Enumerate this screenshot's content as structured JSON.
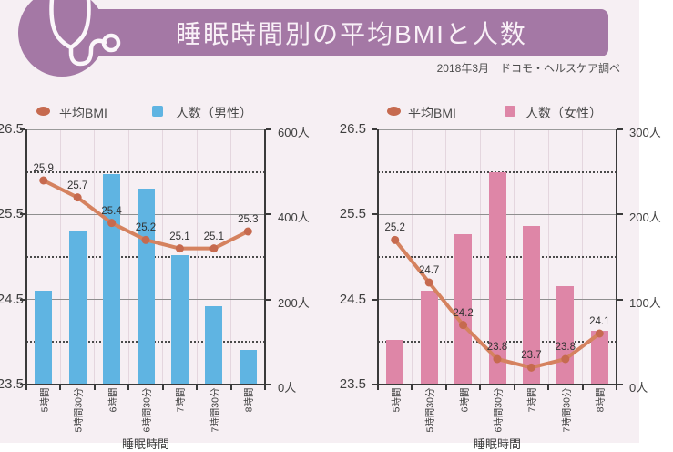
{
  "page": {
    "background": "#f6eff3"
  },
  "header": {
    "title": "睡眠時間別の平均BMIと人数",
    "source_note": "2018年3月　ドコモ・ヘルスケア調べ",
    "banner_color": "#a478a5",
    "title_color": "#f9f0f7",
    "icon": "stethoscope-icon"
  },
  "chart_data": [
    {
      "type": "bar+line",
      "gender": "男性",
      "categories": [
        "5時間",
        "5時間30分",
        "6時間",
        "6時間30分",
        "7時間",
        "7時間30分",
        "8時間"
      ],
      "xlabel": "睡眠時間",
      "bar_series": {
        "name": "人数（男性）",
        "color": "#5fb4e2",
        "axis": "right",
        "values": [
          220,
          360,
          495,
          460,
          305,
          185,
          82
        ]
      },
      "line_series": {
        "name": "平均BMI",
        "color": "#d5825f",
        "marker_color": "#c66a4f",
        "axis": "left",
        "values": [
          25.9,
          25.7,
          25.4,
          25.2,
          25.1,
          25.1,
          25.3
        ],
        "labels": [
          "25.9",
          "25.7",
          "25.4",
          "25.2",
          "25.1",
          "25.1",
          "25.3"
        ]
      },
      "left_axis": {
        "min": 23.5,
        "max": 26.5,
        "tick_labels": [
          "26.5",
          "25.5",
          "24.5",
          "23.5"
        ]
      },
      "right_axis": {
        "min": 0,
        "max": 600,
        "tick_labels": [
          "600人",
          "400人",
          "200人",
          "0人"
        ]
      },
      "grid": {
        "solid_levels": [
          25.5,
          24.5
        ],
        "dotted_levels": [
          26.0,
          25.0,
          24.0
        ]
      }
    },
    {
      "type": "bar+line",
      "gender": "女性",
      "categories": [
        "5時間",
        "5時間30分",
        "6時間",
        "6時間30分",
        "7時間",
        "7時間30分",
        "8時間"
      ],
      "xlabel": "睡眠時間",
      "bar_series": {
        "name": "人数（女性）",
        "color": "#de86a7",
        "axis": "right",
        "values": [
          52,
          110,
          177,
          250,
          186,
          116,
          63
        ]
      },
      "line_series": {
        "name": "平均BMI",
        "color": "#d5825f",
        "marker_color": "#c66a4f",
        "axis": "left",
        "values": [
          25.2,
          24.7,
          24.2,
          23.8,
          23.7,
          23.8,
          24.1
        ],
        "labels": [
          "25.2",
          "24.7",
          "24.2",
          "23.8",
          "23.7",
          "23.8",
          "24.1"
        ]
      },
      "left_axis": {
        "min": 23.5,
        "max": 26.5,
        "tick_labels": [
          "26.5",
          "25.5",
          "24.5",
          "23.5"
        ]
      },
      "right_axis": {
        "min": 0,
        "max": 300,
        "tick_labels": [
          "300人",
          "200人",
          "100人",
          "0人"
        ]
      },
      "grid": {
        "solid_levels": [
          25.5,
          24.5
        ],
        "dotted_levels": [
          26.0,
          25.0,
          24.0
        ]
      }
    }
  ]
}
